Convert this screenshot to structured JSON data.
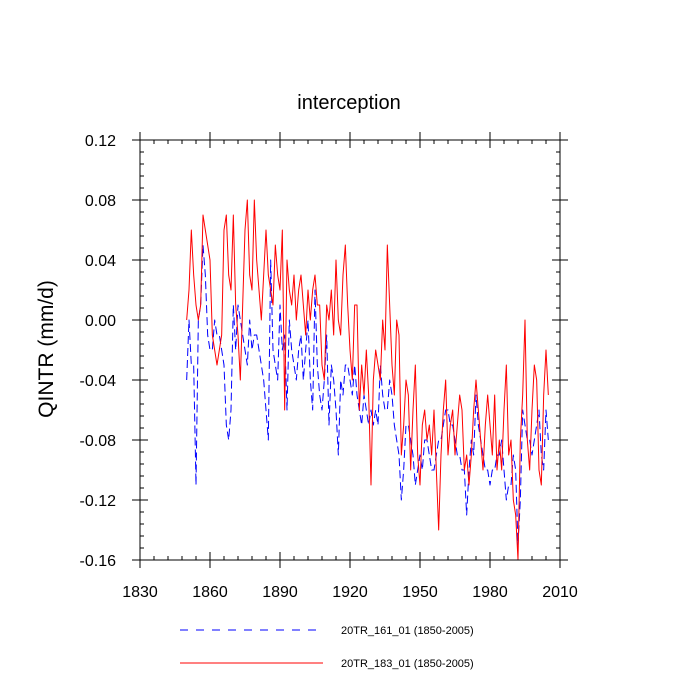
{
  "chart_data": {
    "type": "line",
    "title": "interception",
    "xlabel": "",
    "ylabel": "QINTR  (mm/d)",
    "xlim": [
      1830,
      2010
    ],
    "ylim": [
      -0.16,
      0.12
    ],
    "xticks": [
      1830,
      1860,
      1890,
      1920,
      1950,
      1980,
      2010
    ],
    "yticks": [
      0.12,
      0.08,
      0.04,
      0.0,
      -0.04,
      -0.08,
      -0.12,
      -0.16
    ],
    "ytick_labels": [
      "0.12",
      "0.08",
      "0.04",
      "0.00",
      "-0.04",
      "-0.08",
      "-0.12",
      "-0.16"
    ],
    "legend_position": "bottom",
    "series": [
      {
        "name": "20TR_161_01 (1850-2005)",
        "color": "#0000ff",
        "dash": "dashed",
        "x_start": 1850,
        "values": [
          -0.04,
          0.0,
          -0.03,
          -0.03,
          -0.11,
          0.0,
          0.01,
          0.05,
          0.03,
          -0.01,
          -0.02,
          -0.02,
          0.0,
          -0.01,
          -0.01,
          -0.02,
          -0.03,
          -0.07,
          -0.08,
          -0.06,
          0.01,
          -0.02,
          0.01,
          0.0,
          -0.01,
          -0.02,
          -0.03,
          0.0,
          -0.02,
          -0.01,
          -0.01,
          -0.02,
          -0.03,
          -0.04,
          -0.06,
          -0.08,
          0.04,
          -0.02,
          -0.03,
          -0.04,
          0.01,
          -0.02,
          -0.01,
          -0.06,
          0.0,
          -0.02,
          -0.03,
          -0.04,
          -0.02,
          -0.01,
          -0.04,
          -0.02,
          0.0,
          -0.04,
          -0.06,
          0.02,
          -0.03,
          -0.05,
          -0.06,
          -0.04,
          -0.01,
          -0.07,
          -0.03,
          -0.04,
          -0.06,
          -0.09,
          -0.04,
          -0.05,
          -0.03,
          -0.03,
          -0.04,
          -0.05,
          -0.03,
          -0.05,
          -0.06,
          -0.07,
          -0.05,
          -0.06,
          -0.07,
          -0.06,
          -0.07,
          -0.06,
          -0.07,
          -0.03,
          -0.05,
          -0.06,
          -0.06,
          -0.04,
          -0.05,
          -0.07,
          -0.08,
          -0.09,
          -0.12,
          -0.1,
          -0.07,
          -0.07,
          -0.08,
          -0.09,
          -0.11,
          -0.1,
          -0.09,
          -0.1,
          -0.08,
          -0.08,
          -0.09,
          -0.1,
          -0.1,
          -0.09,
          -0.08,
          -0.08,
          -0.07,
          -0.06,
          -0.06,
          -0.07,
          -0.07,
          -0.08,
          -0.09,
          -0.09,
          -0.1,
          -0.1,
          -0.13,
          -0.1,
          -0.08,
          -0.09,
          -0.05,
          -0.07,
          -0.08,
          -0.09,
          -0.1,
          -0.1,
          -0.11,
          -0.1,
          -0.1,
          -0.09,
          -0.09,
          -0.08,
          -0.1,
          -0.12,
          -0.11,
          -0.11,
          -0.09,
          -0.1,
          -0.15,
          -0.12,
          -0.06,
          -0.07,
          -0.08,
          -0.08,
          -0.09,
          -0.08,
          -0.07,
          -0.06,
          -0.09,
          -0.1,
          -0.06,
          -0.08
        ]
      },
      {
        "name": "20TR_183_01 (1850-2005)",
        "color": "#ff0000",
        "dash": "solid",
        "x_start": 1850,
        "values": [
          0.0,
          0.02,
          0.06,
          0.03,
          0.01,
          0.0,
          0.01,
          0.07,
          0.06,
          0.05,
          0.04,
          -0.01,
          -0.02,
          -0.03,
          -0.02,
          -0.01,
          0.06,
          0.07,
          0.03,
          0.02,
          0.07,
          0.01,
          -0.01,
          -0.04,
          0.01,
          0.06,
          0.08,
          0.03,
          0.02,
          0.08,
          0.04,
          0.02,
          0.0,
          0.03,
          0.06,
          0.03,
          0.02,
          0.01,
          0.05,
          0.03,
          0.02,
          0.06,
          -0.06,
          0.04,
          0.02,
          0.01,
          0.03,
          0.0,
          0.02,
          0.03,
          0.01,
          -0.01,
          0.02,
          0.0,
          0.02,
          0.03,
          0.01,
          0.01,
          -0.03,
          -0.04,
          0.01,
          0.0,
          0.02,
          -0.01,
          0.04,
          0.0,
          -0.01,
          0.03,
          0.05,
          0.01,
          -0.02,
          -0.04,
          0.01,
          0.01,
          -0.06,
          -0.03,
          -0.05,
          -0.02,
          -0.05,
          -0.11,
          -0.04,
          -0.02,
          -0.03,
          -0.04,
          0.0,
          -0.02,
          0.05,
          0.01,
          -0.03,
          -0.05,
          0.0,
          -0.01,
          -0.09,
          -0.07,
          -0.04,
          -0.05,
          -0.1,
          -0.06,
          -0.03,
          -0.09,
          -0.11,
          -0.07,
          -0.06,
          -0.08,
          -0.07,
          -0.09,
          -0.06,
          -0.1,
          -0.14,
          -0.09,
          -0.06,
          -0.04,
          -0.09,
          -0.07,
          -0.06,
          -0.09,
          -0.07,
          -0.05,
          -0.06,
          -0.1,
          -0.09,
          -0.11,
          -0.09,
          -0.06,
          -0.04,
          -0.06,
          -0.08,
          -0.1,
          -0.07,
          -0.05,
          -0.07,
          -0.09,
          -0.05,
          -0.1,
          -0.08,
          -0.1,
          -0.06,
          -0.03,
          -0.09,
          -0.08,
          -0.12,
          -0.13,
          -0.16,
          -0.08,
          -0.05,
          0.0,
          -0.08,
          -0.1,
          -0.06,
          -0.03,
          -0.04,
          -0.1,
          -0.11,
          -0.05,
          -0.02,
          -0.05
        ]
      }
    ]
  }
}
